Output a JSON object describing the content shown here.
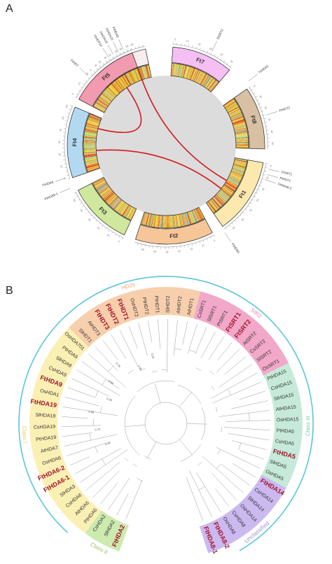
{
  "panels": {
    "a": "A",
    "b": "B"
  },
  "circos": {
    "chromosomes": [
      {
        "label": "Ft6",
        "fill": "#f6eeee"
      },
      {
        "label": "Ft7",
        "fill": "#f5bff3"
      },
      {
        "label": "Ft8",
        "fill": "#d9c0a2"
      },
      {
        "label": "Ft1",
        "fill": "#fde9ad"
      },
      {
        "label": "Ft2",
        "fill": "#f6c699"
      },
      {
        "label": "Ft3",
        "fill": "#cfe89d"
      },
      {
        "label": "Ft4",
        "fill": "#b2d9f0"
      },
      {
        "label": "Ft5",
        "fill": "#f19ab0"
      }
    ],
    "gene_labels": [
      "FtHDA14",
      "FtHDA19",
      "FtHDA20",
      "FtHDA5",
      "FtHDT",
      "FtSRT2",
      "FtHDA2",
      "FtHDT2",
      "FtSRT1",
      "FtHDT1",
      "FtHDA6-2",
      "FtHDA5",
      "FtHDA6-1",
      "FtHDA8"
    ],
    "link_color": "#d4171c"
  },
  "tree": {
    "groups": [
      {
        "label": "SIR2",
        "color": "#f2a8c8",
        "text_color": "#e38bb0"
      },
      {
        "label": "HD2s",
        "color": "#f8cfac",
        "text_color": "#e8a777"
      },
      {
        "label": "Class I",
        "color": "#fbf0b3",
        "text_color": "#e5d24a"
      },
      {
        "label": "Class II",
        "color": "#cdeaaf",
        "text_color": "#9cc55c"
      },
      {
        "label": "Unclassified",
        "color": "#cbb9f0",
        "text_color": "#a08ed6"
      },
      {
        "label": "Class III",
        "color": "#c6ead9",
        "text_color": "#86c8a9"
      }
    ],
    "leaves": [
      {
        "label": "FtHDA2",
        "group": 3,
        "highlight": true
      },
      {
        "label": "SlHDA2",
        "group": 3,
        "highlight": false
      },
      {
        "label": "CsHDA2",
        "group": 3,
        "highlight": false
      },
      {
        "label": "PtHDA6",
        "group": 2,
        "highlight": false
      },
      {
        "label": "AtHDA6",
        "group": 2,
        "highlight": false
      },
      {
        "label": "CsHDA6",
        "group": 2,
        "highlight": false
      },
      {
        "label": "SlHDA3",
        "group": 2,
        "highlight": false
      },
      {
        "label": "FtHDA6-1",
        "group": 2,
        "highlight": true
      },
      {
        "label": "FtHDA6-2",
        "group": 2,
        "highlight": true
      },
      {
        "label": "OsHDA6",
        "group": 2,
        "highlight": false
      },
      {
        "label": "AtHDA7",
        "group": 2,
        "highlight": false
      },
      {
        "label": "PtHDA19",
        "group": 2,
        "highlight": false
      },
      {
        "label": "CsHDA19",
        "group": 2,
        "highlight": false
      },
      {
        "label": "SlHDA19",
        "group": 2,
        "highlight": false
      },
      {
        "label": "FtHDA19",
        "group": 2,
        "highlight": true
      },
      {
        "label": "OsHDA1",
        "group": 2,
        "highlight": false
      },
      {
        "label": "FtHDA9",
        "group": 2,
        "highlight": true
      },
      {
        "label": "CsHDA9",
        "group": 2,
        "highlight": false
      },
      {
        "label": "SlHDA9",
        "group": 2,
        "highlight": false
      },
      {
        "label": "PtHDA9",
        "group": 2,
        "highlight": false
      },
      {
        "label": "OsHDA701",
        "group": 2,
        "highlight": false
      },
      {
        "label": "SlHDT1",
        "group": 1,
        "highlight": false
      },
      {
        "label": "AtHDT3",
        "group": 1,
        "highlight": false
      },
      {
        "label": "FtHDT3",
        "group": 1,
        "highlight": true
      },
      {
        "label": "FtHDT2",
        "group": 1,
        "highlight": true
      },
      {
        "label": "FtHDT1",
        "group": 1,
        "highlight": true
      },
      {
        "label": "OsHDT2",
        "group": 1,
        "highlight": false
      },
      {
        "label": "PtHDT2",
        "group": 1,
        "highlight": false
      },
      {
        "label": "PtHDT1",
        "group": 1,
        "highlight": false
      },
      {
        "label": "SlHDT2",
        "group": 1,
        "highlight": false
      },
      {
        "label": "AtHDT2",
        "group": 1,
        "highlight": false
      },
      {
        "label": "AtHDT1",
        "group": 1,
        "highlight": false
      },
      {
        "label": "CsSRT1",
        "group": 0,
        "highlight": false
      },
      {
        "label": "SlSRT1",
        "group": 0,
        "highlight": false
      },
      {
        "label": "PtSRT1",
        "group": 0,
        "highlight": false
      },
      {
        "label": "FtSRT1",
        "group": 0,
        "highlight": true
      },
      {
        "label": "FtSRT2",
        "group": 0,
        "highlight": true
      },
      {
        "label": "AtSRT2",
        "group": 0,
        "highlight": false
      },
      {
        "label": "CsSRT2",
        "group": 0,
        "highlight": false
      },
      {
        "label": "SlSRT2",
        "group": 0,
        "highlight": false
      },
      {
        "label": "OsSRT1",
        "group": 0,
        "highlight": false
      },
      {
        "label": "PtHDA15",
        "group": 5,
        "highlight": false
      },
      {
        "label": "CsHDA15",
        "group": 5,
        "highlight": false
      },
      {
        "label": "SlHDA15",
        "group": 5,
        "highlight": false
      },
      {
        "label": "AtHDA15",
        "group": 5,
        "highlight": false
      },
      {
        "label": "OsHDA15",
        "group": 5,
        "highlight": false
      },
      {
        "label": "PtHDA5",
        "group": 5,
        "highlight": false
      },
      {
        "label": "CsHDA5",
        "group": 5,
        "highlight": false
      },
      {
        "label": "FtHDA5",
        "group": 5,
        "highlight": true
      },
      {
        "label": "SlHDA5",
        "group": 5,
        "highlight": false
      },
      {
        "label": "OsHDA5",
        "group": 5,
        "highlight": false
      },
      {
        "label": "FtHDA14",
        "group": 4,
        "highlight": true
      },
      {
        "label": "CsHDA14",
        "group": 4,
        "highlight": false
      },
      {
        "label": "SlHDA14",
        "group": 4,
        "highlight": false
      },
      {
        "label": "OsHDA14",
        "group": 4,
        "highlight": false
      },
      {
        "label": "CsHDA8",
        "group": 4,
        "highlight": false
      },
      {
        "label": "OsHDA8",
        "group": 4,
        "highlight": false
      },
      {
        "label": "FtHDA8-2",
        "group": 4,
        "highlight": true
      },
      {
        "label": "FtHDA8-1",
        "group": 4,
        "highlight": true
      }
    ],
    "outer_arc": {
      "label": "RPD3/HDA1",
      "color": "#5bc6d8"
    },
    "branch_values": [
      "0.98",
      "0.72",
      "0.98",
      "0.99",
      "0.99",
      "0.78",
      "1.00",
      "0.97"
    ]
  }
}
